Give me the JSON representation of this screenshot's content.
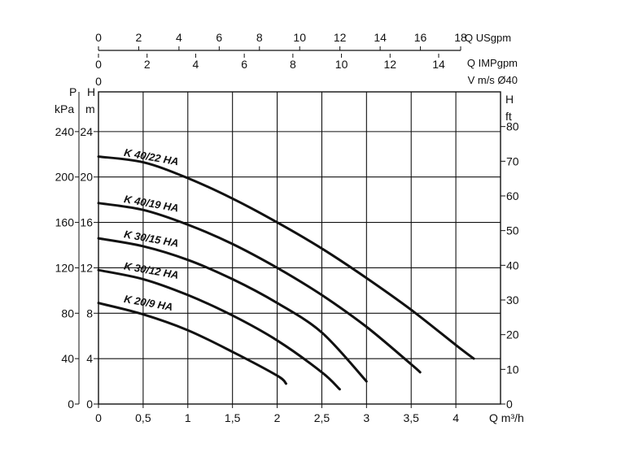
{
  "chart_data": {
    "type": "line",
    "grid": true,
    "x_axis": {
      "label": "Q m³/h",
      "ticks": [
        "0",
        "0,5",
        "1",
        "1,5",
        "2",
        "2,5",
        "3",
        "3,5",
        "4"
      ],
      "range": [
        0,
        4.5
      ]
    },
    "top_axes": [
      {
        "label": "Q USgpm",
        "ticks": [
          "0",
          "2",
          "4",
          "6",
          "8",
          "10",
          "12",
          "14",
          "16",
          "18"
        ],
        "range": [
          0,
          18
        ]
      },
      {
        "label": "Q IMPgpm",
        "ticks": [
          "0",
          "2",
          "4",
          "6",
          "8",
          "10",
          "12",
          "14"
        ],
        "range": [
          0,
          14
        ]
      },
      {
        "label": "V m/s Ø40",
        "ticks": [
          "0"
        ]
      }
    ],
    "y_axis_head_m": {
      "label": "H",
      "unit": "m",
      "ticks": [
        "0",
        "4",
        "8",
        "12",
        "16",
        "20",
        "24"
      ],
      "range": [
        0,
        27.5
      ]
    },
    "y_axis_pressure_kpa": {
      "label": "P",
      "unit": "kPa",
      "ticks": [
        "0",
        "40",
        "80",
        "120",
        "160",
        "200",
        "240"
      ],
      "range": [
        0,
        275
      ]
    },
    "y_axis_head_ft": {
      "label": "H",
      "unit": "ft",
      "ticks": [
        "0",
        "10",
        "20",
        "30",
        "40",
        "50",
        "60",
        "70",
        "80"
      ],
      "range": [
        0,
        90
      ]
    },
    "series": [
      {
        "name": "K 40/22 HA",
        "x": [
          0,
          0.5,
          1,
          1.5,
          2,
          2.5,
          3,
          3.5,
          4,
          4.2
        ],
        "y": [
          21.8,
          21.3,
          19.9,
          18.1,
          16.0,
          13.7,
          11.1,
          8.3,
          5.2,
          4.0
        ]
      },
      {
        "name": "K 40/19 HA",
        "x": [
          0,
          0.5,
          1,
          1.5,
          2,
          2.5,
          3,
          3.5,
          3.6
        ],
        "y": [
          17.7,
          17.1,
          15.8,
          14.1,
          12.0,
          9.6,
          6.8,
          3.5,
          2.8
        ]
      },
      {
        "name": "K 30/15 HA",
        "x": [
          0,
          0.5,
          1,
          1.5,
          2,
          2.5,
          3
        ],
        "y": [
          14.6,
          13.9,
          12.7,
          11.0,
          8.9,
          6.3,
          2.0
        ]
      },
      {
        "name": "K 30/12 HA",
        "x": [
          0,
          0.5,
          1,
          1.5,
          2,
          2.5,
          2.7
        ],
        "y": [
          11.8,
          11.0,
          9.6,
          7.8,
          5.6,
          2.8,
          1.3
        ]
      },
      {
        "name": "K 20/9 HA",
        "x": [
          0,
          0.5,
          1,
          1.5,
          2,
          2.1
        ],
        "y": [
          8.9,
          7.9,
          6.5,
          4.6,
          2.5,
          1.8
        ]
      }
    ]
  }
}
